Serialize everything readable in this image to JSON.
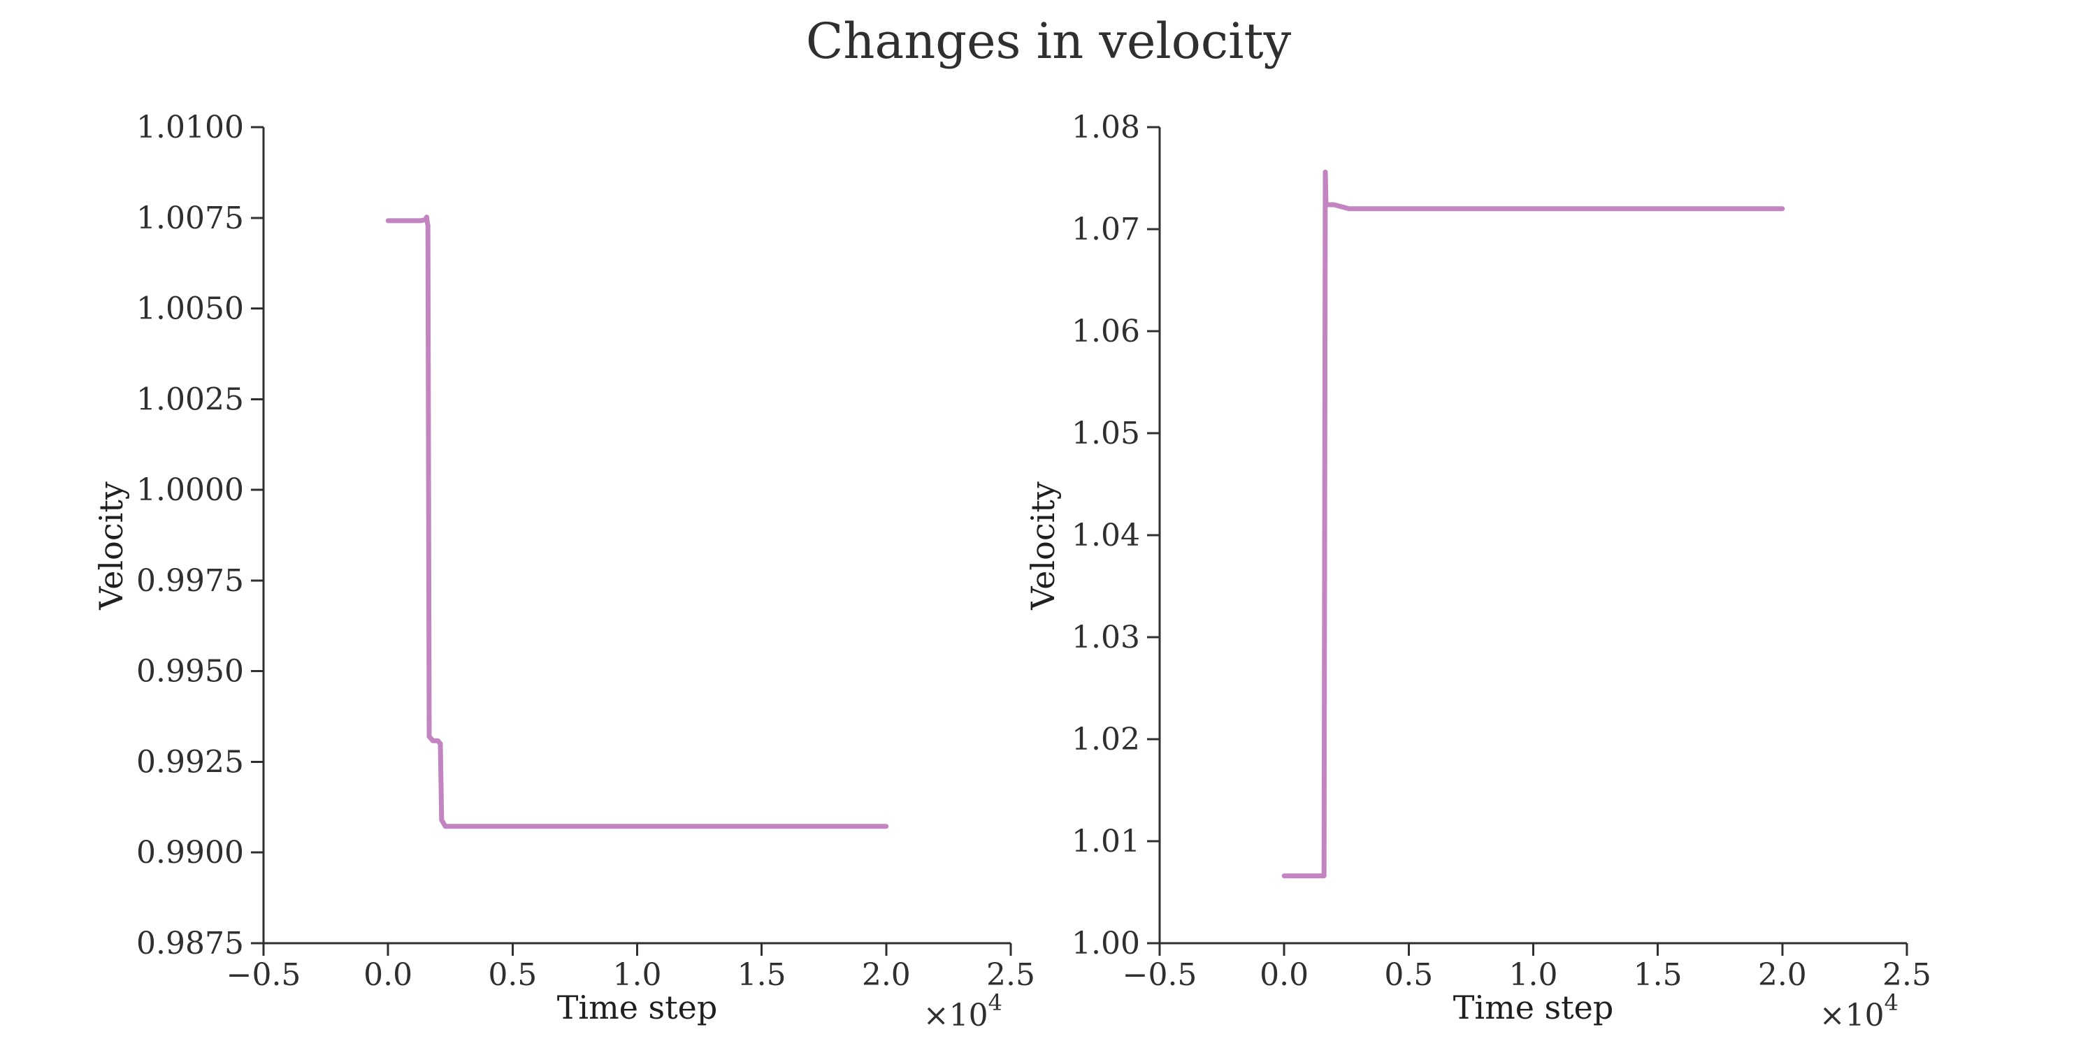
{
  "figure": {
    "title": "Changes in velocity"
  },
  "chart_data": [
    {
      "type": "line",
      "title": "",
      "xlabel": "Time step",
      "ylabel": "Velocity",
      "x_multiplier": {
        "base": "×10",
        "exponent": "4"
      },
      "xlim": [
        -0.5,
        2.5
      ],
      "ylim": [
        0.9875,
        1.01
      ],
      "x_ticks": [
        "−0.5",
        "0.0",
        "0.5",
        "1.0",
        "1.5",
        "2.0",
        "2.5"
      ],
      "y_ticks": [
        "0.9875",
        "0.9900",
        "0.9925",
        "0.9950",
        "0.9975",
        "1.0000",
        "1.0025",
        "1.0050",
        "1.0075",
        "1.0100"
      ],
      "grid": false,
      "series": [
        {
          "color": "#c285c2",
          "points": [
            [
              0.0,
              1.00742
            ],
            [
              0.13,
              1.00742
            ],
            [
              0.15,
              1.00745
            ],
            [
              0.155,
              1.00752
            ],
            [
              0.158,
              1.00735
            ],
            [
              0.16,
              1.0073
            ],
            [
              0.165,
              0.9932
            ],
            [
              0.18,
              0.99308
            ],
            [
              0.2,
              0.99308
            ],
            [
              0.21,
              0.993
            ],
            [
              0.215,
              0.9909
            ],
            [
              0.23,
              0.99072
            ],
            [
              0.3,
              0.99072
            ],
            [
              2.0,
              0.99072
            ]
          ]
        }
      ]
    },
    {
      "type": "line",
      "title": "",
      "xlabel": "Time step",
      "ylabel": "Velocity",
      "x_multiplier": {
        "base": "×10",
        "exponent": "4"
      },
      "xlim": [
        -0.5,
        2.5
      ],
      "ylim": [
        1.0,
        1.08
      ],
      "x_ticks": [
        "−0.5",
        "0.0",
        "0.5",
        "1.0",
        "1.5",
        "2.0",
        "2.5"
      ],
      "y_ticks": [
        "1.00",
        "1.01",
        "1.02",
        "1.03",
        "1.04",
        "1.05",
        "1.06",
        "1.07",
        "1.08"
      ],
      "grid": false,
      "series": [
        {
          "color": "#c285c2",
          "points": [
            [
              0.0,
              1.0066
            ],
            [
              0.16,
              1.0066
            ],
            [
              0.165,
              1.0756
            ],
            [
              0.168,
              1.0724
            ],
            [
              0.2,
              1.0724
            ],
            [
              0.23,
              1.0722
            ],
            [
              0.26,
              1.072
            ],
            [
              2.0,
              1.072
            ]
          ]
        }
      ]
    }
  ]
}
